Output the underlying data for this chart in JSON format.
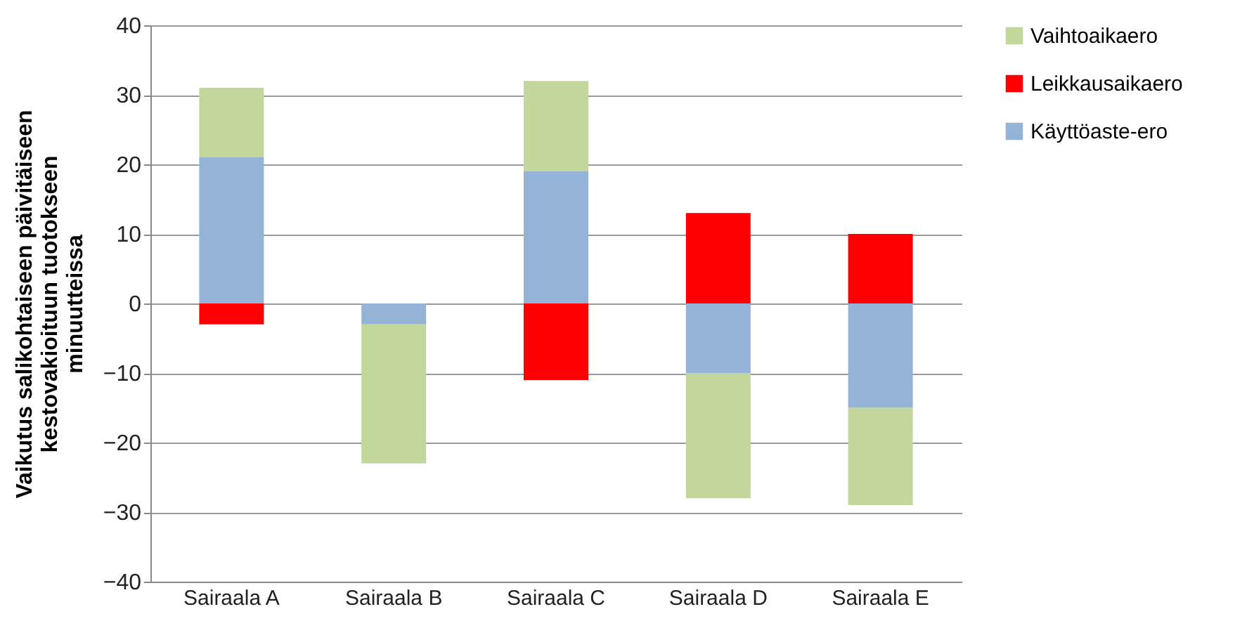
{
  "chart_data": {
    "type": "bar",
    "stacked": true,
    "ylabel": "Vaikutus salikohtaiseen päivitäiseen\nkestovakioituun tuotokseen\nminuutteissa",
    "categories": [
      "Sairaala A",
      "Sairaala B",
      "Sairaala C",
      "Sairaala D",
      "Sairaala E"
    ],
    "series": [
      {
        "name": "Käyttöaste-ero",
        "color": "#95b3d7",
        "values": [
          21,
          -3,
          19,
          -10,
          -15
        ]
      },
      {
        "name": "Leikkausaikaero",
        "color": "#ff0000",
        "values": [
          -3,
          null,
          -11,
          13,
          10
        ]
      },
      {
        "name": "Vaihtoaikaero",
        "color": "#c3d69b",
        "values": [
          10,
          -20,
          13,
          -18,
          -14
        ]
      }
    ],
    "ylim": [
      -40,
      40
    ],
    "yticks": [
      -40,
      -30,
      -20,
      -10,
      0,
      10,
      20,
      30,
      40
    ],
    "grid": "y",
    "legend": "right"
  }
}
